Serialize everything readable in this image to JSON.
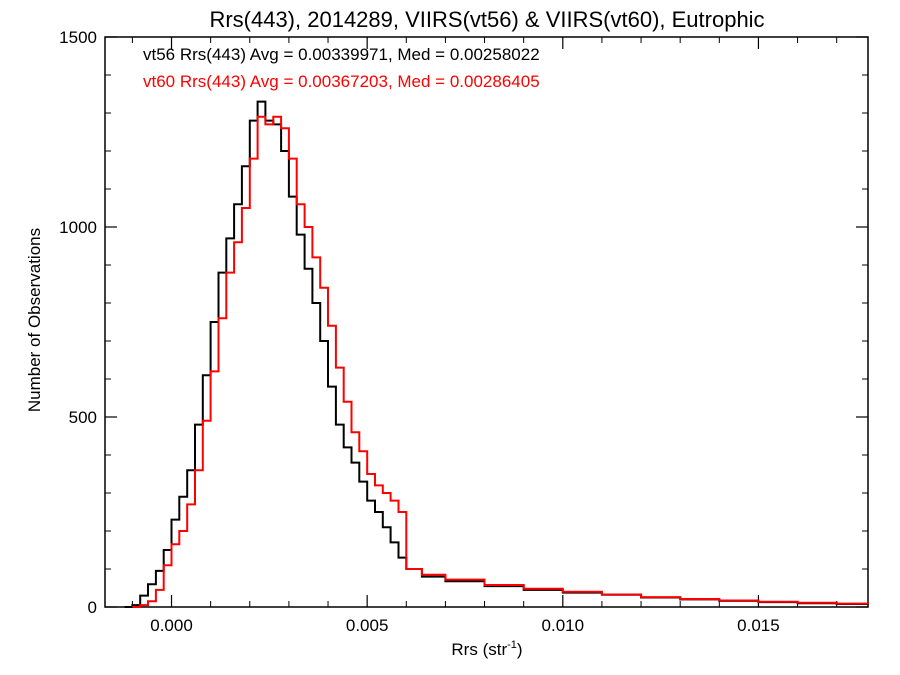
{
  "chart_data": {
    "type": "line",
    "title": "Rrs(443), 2014289, VIIRS(vt56) & VIIRS(vt60), Eutrophic",
    "xlabel_main": "Rrs (str",
    "xlabel_sup": "-1",
    "xlabel_close": ")",
    "ylabel": "Number of Observations",
    "xlim": [
      -0.0017,
      0.0178
    ],
    "ylim": [
      0,
      1500
    ],
    "x_ticks": [
      0.0,
      0.005,
      0.01,
      0.015
    ],
    "x_tick_labels": [
      "0.000",
      "0.005",
      "0.010",
      "0.015"
    ],
    "y_ticks": [
      0,
      500,
      1000,
      1500
    ],
    "y_tick_labels": [
      "0",
      "500",
      "1000",
      "1500"
    ],
    "x_minor_step": 0.001,
    "y_minor_step": 100,
    "grid": false,
    "legend": [
      {
        "text": "vt56 Rrs(443) Avg = 0.00339971, Med = 0.00258022",
        "color": "#000000"
      },
      {
        "text": "vt60 Rrs(443) Avg = 0.00367203, Med = 0.00286405",
        "color": "#ff0000"
      }
    ],
    "series": [
      {
        "name": "vt56",
        "color": "#000000",
        "points": [
          [
            -0.0012,
            0
          ],
          [
            -0.001,
            5
          ],
          [
            -0.0008,
            30
          ],
          [
            -0.0006,
            60
          ],
          [
            -0.0004,
            95
          ],
          [
            -0.0002,
            150
          ],
          [
            0.0,
            230
          ],
          [
            0.0002,
            290
          ],
          [
            0.0004,
            360
          ],
          [
            0.0006,
            480
          ],
          [
            0.0008,
            610
          ],
          [
            0.001,
            750
          ],
          [
            0.0012,
            880
          ],
          [
            0.0014,
            970
          ],
          [
            0.0016,
            1060
          ],
          [
            0.0018,
            1160
          ],
          [
            0.002,
            1280
          ],
          [
            0.0022,
            1330
          ],
          [
            0.0024,
            1280
          ],
          [
            0.0026,
            1270
          ],
          [
            0.0028,
            1200
          ],
          [
            0.003,
            1080
          ],
          [
            0.0032,
            980
          ],
          [
            0.0034,
            890
          ],
          [
            0.0036,
            800
          ],
          [
            0.0038,
            700
          ],
          [
            0.004,
            580
          ],
          [
            0.0042,
            480
          ],
          [
            0.0044,
            420
          ],
          [
            0.0046,
            380
          ],
          [
            0.0048,
            330
          ],
          [
            0.005,
            280
          ],
          [
            0.0052,
            250
          ],
          [
            0.0054,
            210
          ],
          [
            0.0056,
            170
          ],
          [
            0.0058,
            130
          ],
          [
            0.006,
            100
          ],
          [
            0.0064,
            80
          ],
          [
            0.007,
            68
          ],
          [
            0.008,
            55
          ],
          [
            0.009,
            45
          ],
          [
            0.01,
            38
          ],
          [
            0.011,
            32
          ],
          [
            0.012,
            25
          ],
          [
            0.013,
            20
          ],
          [
            0.014,
            16
          ],
          [
            0.015,
            13
          ],
          [
            0.016,
            10
          ],
          [
            0.017,
            8
          ],
          [
            0.0178,
            6
          ]
        ]
      },
      {
        "name": "vt60",
        "color": "#ff0000",
        "points": [
          [
            -0.001,
            0
          ],
          [
            -0.0008,
            5
          ],
          [
            -0.0006,
            15
          ],
          [
            -0.0004,
            45
          ],
          [
            -0.0002,
            110
          ],
          [
            0.0,
            165
          ],
          [
            0.0002,
            200
          ],
          [
            0.0004,
            270
          ],
          [
            0.0006,
            360
          ],
          [
            0.0008,
            490
          ],
          [
            0.001,
            620
          ],
          [
            0.0012,
            760
          ],
          [
            0.0014,
            880
          ],
          [
            0.0016,
            960
          ],
          [
            0.0018,
            1050
          ],
          [
            0.002,
            1180
          ],
          [
            0.0022,
            1290
          ],
          [
            0.0024,
            1270
          ],
          [
            0.0026,
            1290
          ],
          [
            0.0028,
            1260
          ],
          [
            0.003,
            1180
          ],
          [
            0.0032,
            1060
          ],
          [
            0.0034,
            1000
          ],
          [
            0.0036,
            920
          ],
          [
            0.0038,
            840
          ],
          [
            0.004,
            740
          ],
          [
            0.0042,
            630
          ],
          [
            0.0044,
            540
          ],
          [
            0.0046,
            460
          ],
          [
            0.0048,
            410
          ],
          [
            0.005,
            350
          ],
          [
            0.0052,
            320
          ],
          [
            0.0054,
            300
          ],
          [
            0.0056,
            280
          ],
          [
            0.0058,
            250
          ],
          [
            0.006,
            100
          ],
          [
            0.0064,
            85
          ],
          [
            0.007,
            72
          ],
          [
            0.008,
            58
          ],
          [
            0.009,
            48
          ],
          [
            0.01,
            40
          ],
          [
            0.011,
            33
          ],
          [
            0.012,
            26
          ],
          [
            0.013,
            21
          ],
          [
            0.014,
            17
          ],
          [
            0.015,
            14
          ],
          [
            0.016,
            11
          ],
          [
            0.017,
            9
          ],
          [
            0.0178,
            7
          ]
        ]
      }
    ]
  }
}
